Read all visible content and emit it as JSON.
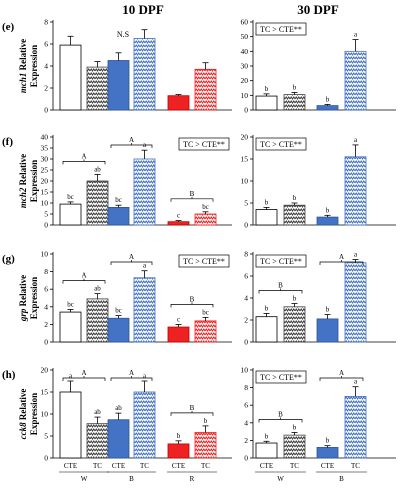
{
  "column_titles": [
    "10 DPF",
    "30 DPF"
  ],
  "x_axis": {
    "bar_labels": [
      "CTE",
      "TC",
      "CTE",
      "TC",
      "CTE",
      "TC"
    ],
    "group_labels": [
      "W",
      "B",
      "R"
    ]
  },
  "colors": {
    "W_CTE": "#ffffff",
    "B_CTE": "#4472c4",
    "R_CTE": "#ee2222",
    "W_TC": "#404040",
    "B_TC": "#4472c4",
    "R_TC": "#ee2222"
  },
  "chart_data": [
    {
      "type": "bar",
      "panel": "(e)",
      "column": "10 DPF",
      "gene": "mch1",
      "ylabel": "Relative Expression",
      "ylim": [
        0,
        8
      ],
      "yticks": [
        0,
        2,
        4,
        6,
        8
      ],
      "categories": [
        "W-CTE",
        "W-TC",
        "B-CTE",
        "B-TC",
        "R-CTE",
        "R-TC"
      ],
      "values": [
        5.9,
        3.9,
        4.5,
        6.5,
        1.3,
        3.7
      ],
      "errors": [
        0.8,
        0.5,
        0.7,
        0.8,
        0.1,
        0.6
      ],
      "letters": [
        "",
        "",
        "",
        "",
        "",
        ""
      ],
      "note": "N.S",
      "sig_box": "",
      "brackets": []
    },
    {
      "type": "bar",
      "panel": "(e)",
      "column": "30 DPF",
      "gene": "mch1",
      "ylabel": "",
      "ylim": [
        0,
        60
      ],
      "yticks": [
        0,
        10,
        20,
        30,
        40,
        50,
        60
      ],
      "categories": [
        "W-CTE",
        "W-TC",
        "B-CTE",
        "B-TC"
      ],
      "values": [
        9.5,
        10.5,
        3,
        40
      ],
      "errors": [
        1.5,
        1.5,
        0.8,
        8
      ],
      "letters": [
        "b",
        "b",
        "b",
        "a"
      ],
      "note": "",
      "sig_box": "TC > CTE**",
      "brackets": []
    },
    {
      "type": "bar",
      "panel": "(f)",
      "column": "10 DPF",
      "gene": "mch2",
      "ylabel": "Relative Expression",
      "ylim": [
        0,
        40
      ],
      "yticks": [
        0,
        5,
        10,
        15,
        20,
        25,
        30,
        35,
        40
      ],
      "categories": [
        "W-CTE",
        "W-TC",
        "B-CTE",
        "B-TC",
        "R-CTE",
        "R-TC"
      ],
      "values": [
        9.5,
        20,
        8,
        30,
        1.5,
        5
      ],
      "errors": [
        1,
        3,
        1,
        4,
        0.5,
        1
      ],
      "letters": [
        "bc",
        "ab",
        "bc",
        "a",
        "c",
        "bc"
      ],
      "note": "",
      "sig_box": "TC > CTE**",
      "brackets": [
        "A",
        "A",
        "B"
      ]
    },
    {
      "type": "bar",
      "panel": "(f)",
      "column": "30 DPF",
      "gene": "mch2",
      "ylabel": "",
      "ylim": [
        0,
        20
      ],
      "yticks": [
        0,
        5,
        10,
        15,
        20
      ],
      "categories": [
        "W-CTE",
        "W-TC",
        "B-CTE",
        "B-TC"
      ],
      "values": [
        3.5,
        4.5,
        1.8,
        15.5
      ],
      "errors": [
        0.5,
        0.5,
        0.4,
        2.7
      ],
      "letters": [
        "b",
        "b",
        "b",
        "a"
      ],
      "note": "",
      "sig_box": "TC > CTE**",
      "brackets": []
    },
    {
      "type": "bar",
      "panel": "(g)",
      "column": "10 DPF",
      "gene": "grp",
      "ylabel": "Relative Expression",
      "ylim": [
        0,
        10
      ],
      "yticks": [
        0,
        2,
        4,
        6,
        8,
        10
      ],
      "categories": [
        "W-CTE",
        "W-TC",
        "B-CTE",
        "B-TC",
        "R-CTE",
        "R-TC"
      ],
      "values": [
        3.4,
        4.9,
        2.7,
        7.3,
        1.7,
        2.4
      ],
      "errors": [
        0.3,
        0.6,
        0.3,
        0.8,
        0.3,
        0.4
      ],
      "letters": [
        "bc",
        "ab",
        "bc",
        "a",
        "c",
        "bc"
      ],
      "note": "",
      "sig_box": "TC > CTE**",
      "brackets": [
        "A",
        "A",
        "B"
      ]
    },
    {
      "type": "bar",
      "panel": "(g)",
      "column": "30 DPF",
      "gene": "grp",
      "ylabel": "",
      "ylim": [
        0,
        8
      ],
      "yticks": [
        0,
        2,
        4,
        6,
        8
      ],
      "categories": [
        "W-CTE",
        "W-TC",
        "B-CTE",
        "B-TC"
      ],
      "values": [
        2.3,
        3.2,
        2.1,
        7.2
      ],
      "errors": [
        0.3,
        0.3,
        0.4,
        0.3
      ],
      "letters": [
        "b",
        "b",
        "b",
        "a"
      ],
      "note": "",
      "sig_box": "TC > CTE**",
      "brackets": [
        "B",
        "A"
      ]
    },
    {
      "type": "bar",
      "panel": "(h)",
      "column": "10 DPF",
      "gene": "cck8",
      "ylabel": "Relative Expression",
      "ylim": [
        0,
        20
      ],
      "yticks": [
        0,
        5,
        10,
        15,
        20
      ],
      "categories": [
        "W-CTE",
        "W-TC",
        "B-CTE",
        "B-TC",
        "R-CTE",
        "R-TC"
      ],
      "values": [
        15,
        7.8,
        8.7,
        15,
        3.2,
        5.8
      ],
      "errors": [
        2.5,
        1.5,
        1.5,
        2.5,
        0.7,
        1.5
      ],
      "letters": [
        "a",
        "ab",
        "ab",
        "a",
        "b",
        "b"
      ],
      "note": "",
      "sig_box": "",
      "brackets": [
        "A",
        "A",
        "B"
      ]
    },
    {
      "type": "bar",
      "panel": "(h)",
      "column": "30 DPF",
      "gene": "cck8",
      "ylabel": "",
      "ylim": [
        0,
        10
      ],
      "yticks": [
        0,
        2,
        4,
        6,
        8,
        10
      ],
      "categories": [
        "W-CTE",
        "W-TC",
        "B-CTE",
        "B-TC"
      ],
      "values": [
        1.7,
        2.6,
        1.2,
        7
      ],
      "errors": [
        0.2,
        0.3,
        0.2,
        1.1
      ],
      "letters": [
        "b",
        "b",
        "b",
        "a"
      ],
      "note": "",
      "sig_box": "TC > CTE**",
      "brackets": [
        "B",
        "A"
      ]
    }
  ]
}
